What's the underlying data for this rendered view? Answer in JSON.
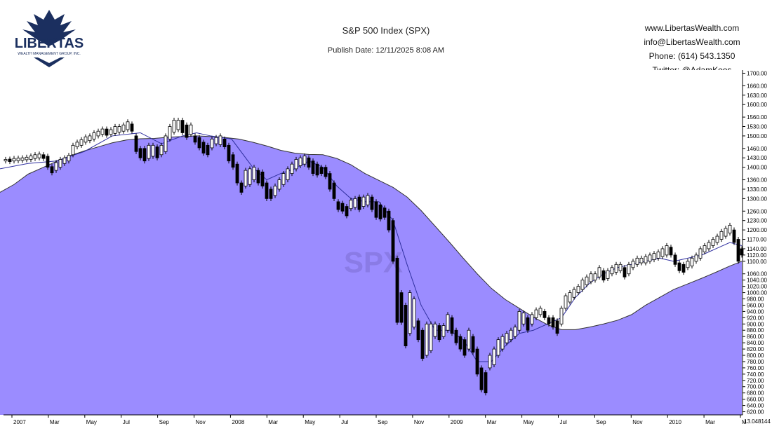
{
  "header": {
    "title": "S&P 500 Index (SPX)",
    "publish": "Publish Date: 12/11/2025 8:08 AM",
    "logo_text": "LIBERTAS",
    "logo_sub": "WEALTH MANAGEMENT GROUP, INC.",
    "contact": [
      "www.LibertasWealth.com",
      "info@LibertasWealth.com",
      "Phone:  (614) 543.1350",
      "Twitter:  @AdamKoos"
    ]
  },
  "chart_data": {
    "type": "candlestick",
    "symbol_watermark": "SPX",
    "ylim": [
      610,
      1710
    ],
    "y_ticks": [
      620,
      640,
      660,
      680,
      700,
      720,
      740,
      760,
      780,
      800,
      820,
      840,
      860,
      880,
      900,
      920,
      940,
      960,
      980,
      1000,
      1020,
      1040,
      1060,
      1100,
      1120,
      1140,
      1170,
      1200,
      1230,
      1260,
      1300,
      1330,
      1360,
      1400,
      1430,
      1460,
      1500,
      1530,
      1560,
      1600,
      1630,
      1660,
      1700
    ],
    "x_labels": [
      "2007",
      "Mar",
      "May",
      "Jul",
      "Sep",
      "Nov",
      "2008",
      "Mar",
      "May",
      "Jul",
      "Sep",
      "Nov",
      "2009",
      "Mar",
      "May",
      "Jul",
      "Sep",
      "Nov",
      "2010",
      "Mar",
      "M"
    ],
    "last_value": "13.048144",
    "colors": {
      "area": "#9b8cff",
      "ma": "#3030a0",
      "bg": "#ffffff",
      "axis": "#000000"
    },
    "long_ma": [
      [
        0,
        1320
      ],
      [
        20,
        1345
      ],
      [
        40,
        1378
      ],
      [
        60,
        1398
      ],
      [
        80,
        1418
      ],
      [
        100,
        1437
      ],
      [
        120,
        1452
      ],
      [
        140,
        1465
      ],
      [
        160,
        1478
      ],
      [
        180,
        1487
      ],
      [
        200,
        1491
      ],
      [
        220,
        1492
      ],
      [
        240,
        1496
      ],
      [
        260,
        1498
      ],
      [
        280,
        1500
      ],
      [
        300,
        1498
      ],
      [
        320,
        1495
      ],
      [
        340,
        1490
      ],
      [
        360,
        1480
      ],
      [
        380,
        1468
      ],
      [
        400,
        1454
      ],
      [
        420,
        1445
      ],
      [
        440,
        1441
      ],
      [
        460,
        1440
      ],
      [
        480,
        1428
      ],
      [
        500,
        1408
      ],
      [
        520,
        1380
      ],
      [
        540,
        1358
      ],
      [
        560,
        1336
      ],
      [
        580,
        1305
      ],
      [
        600,
        1262
      ],
      [
        620,
        1212
      ],
      [
        640,
        1162
      ],
      [
        660,
        1110
      ],
      [
        680,
        1060
      ],
      [
        700,
        1014
      ],
      [
        720,
        978
      ],
      [
        740,
        950
      ],
      [
        760,
        922
      ],
      [
        780,
        898
      ],
      [
        800,
        882
      ],
      [
        820,
        882
      ],
      [
        840,
        890
      ],
      [
        860,
        900
      ],
      [
        880,
        912
      ],
      [
        900,
        930
      ],
      [
        920,
        960
      ],
      [
        940,
        985
      ],
      [
        960,
        1010
      ],
      [
        980,
        1028
      ],
      [
        1000,
        1046
      ],
      [
        1020,
        1065
      ],
      [
        1040,
        1085
      ],
      [
        1057,
        1100
      ]
    ],
    "short_ma": [
      [
        0,
        1395
      ],
      [
        40,
        1412
      ],
      [
        80,
        1420
      ],
      [
        120,
        1450
      ],
      [
        160,
        1500
      ],
      [
        200,
        1510
      ],
      [
        230,
        1475
      ],
      [
        260,
        1500
      ],
      [
        280,
        1510
      ],
      [
        300,
        1500
      ],
      [
        330,
        1490
      ],
      [
        360,
        1400
      ],
      [
        380,
        1360
      ],
      [
        400,
        1380
      ],
      [
        420,
        1395
      ],
      [
        440,
        1420
      ],
      [
        460,
        1400
      ],
      [
        480,
        1340
      ],
      [
        500,
        1300
      ],
      [
        520,
        1290
      ],
      [
        540,
        1290
      ],
      [
        560,
        1230
      ],
      [
        580,
        1090
      ],
      [
        600,
        960
      ],
      [
        620,
        880
      ],
      [
        640,
        880
      ],
      [
        660,
        850
      ],
      [
        680,
        780
      ],
      [
        700,
        780
      ],
      [
        720,
        830
      ],
      [
        740,
        870
      ],
      [
        760,
        880
      ],
      [
        780,
        900
      ],
      [
        800,
        920
      ],
      [
        820,
        985
      ],
      [
        840,
        1030
      ],
      [
        860,
        1060
      ],
      [
        880,
        1080
      ],
      [
        900,
        1090
      ],
      [
        920,
        1100
      ],
      [
        940,
        1110
      ],
      [
        960,
        1100
      ],
      [
        980,
        1110
      ],
      [
        1000,
        1120
      ],
      [
        1020,
        1140
      ],
      [
        1040,
        1160
      ],
      [
        1057,
        1150
      ]
    ],
    "candles": [
      [
        8,
        1420,
        1425
      ],
      [
        14,
        1418,
        1426
      ],
      [
        20,
        1420,
        1428
      ],
      [
        26,
        1421,
        1429
      ],
      [
        32,
        1422,
        1430
      ],
      [
        38,
        1424,
        1432
      ],
      [
        44,
        1425,
        1436
      ],
      [
        50,
        1428,
        1440
      ],
      [
        56,
        1430,
        1442
      ],
      [
        62,
        1428,
        1440
      ],
      [
        68,
        1400,
        1435
      ],
      [
        74,
        1382,
        1402
      ],
      [
        80,
        1390,
        1415
      ],
      [
        86,
        1400,
        1425
      ],
      [
        92,
        1412,
        1430
      ],
      [
        98,
        1420,
        1438
      ],
      [
        104,
        1440,
        1470
      ],
      [
        110,
        1465,
        1480
      ],
      [
        116,
        1470,
        1488
      ],
      [
        122,
        1480,
        1497
      ],
      [
        128,
        1485,
        1500
      ],
      [
        134,
        1490,
        1510
      ],
      [
        140,
        1500,
        1515
      ],
      [
        146,
        1505,
        1522
      ],
      [
        152,
        1502,
        1522
      ],
      [
        158,
        1505,
        1520
      ],
      [
        164,
        1508,
        1530
      ],
      [
        170,
        1512,
        1530
      ],
      [
        176,
        1515,
        1535
      ],
      [
        182,
        1520,
        1545
      ],
      [
        188,
        1515,
        1538
      ],
      [
        194,
        1450,
        1500
      ],
      [
        200,
        1430,
        1460
      ],
      [
        206,
        1420,
        1460
      ],
      [
        212,
        1428,
        1470
      ],
      [
        218,
        1435,
        1470
      ],
      [
        224,
        1430,
        1465
      ],
      [
        230,
        1440,
        1470
      ],
      [
        236,
        1450,
        1500
      ],
      [
        242,
        1490,
        1530
      ],
      [
        248,
        1512,
        1550
      ],
      [
        254,
        1520,
        1550
      ],
      [
        260,
        1510,
        1550
      ],
      [
        266,
        1495,
        1535
      ],
      [
        272,
        1505,
        1535
      ],
      [
        278,
        1480,
        1500
      ],
      [
        284,
        1462,
        1495
      ],
      [
        290,
        1445,
        1480
      ],
      [
        296,
        1440,
        1470
      ],
      [
        302,
        1462,
        1490
      ],
      [
        308,
        1475,
        1495
      ],
      [
        314,
        1472,
        1500
      ],
      [
        320,
        1465,
        1490
      ],
      [
        326,
        1420,
        1470
      ],
      [
        332,
        1400,
        1440
      ],
      [
        338,
        1350,
        1410
      ],
      [
        344,
        1320,
        1350
      ],
      [
        350,
        1340,
        1390
      ],
      [
        356,
        1345,
        1395
      ],
      [
        362,
        1360,
        1400
      ],
      [
        368,
        1350,
        1390
      ],
      [
        374,
        1340,
        1385
      ],
      [
        380,
        1300,
        1350
      ],
      [
        386,
        1300,
        1330
      ],
      [
        392,
        1310,
        1340
      ],
      [
        398,
        1330,
        1360
      ],
      [
        404,
        1345,
        1380
      ],
      [
        410,
        1360,
        1395
      ],
      [
        416,
        1380,
        1410
      ],
      [
        422,
        1395,
        1425
      ],
      [
        428,
        1405,
        1430
      ],
      [
        434,
        1410,
        1436
      ],
      [
        440,
        1400,
        1430
      ],
      [
        446,
        1380,
        1420
      ],
      [
        452,
        1375,
        1410
      ],
      [
        458,
        1380,
        1400
      ],
      [
        464,
        1370,
        1400
      ],
      [
        470,
        1330,
        1380
      ],
      [
        476,
        1300,
        1350
      ],
      [
        482,
        1265,
        1290
      ],
      [
        488,
        1260,
        1285
      ],
      [
        494,
        1245,
        1275
      ],
      [
        500,
        1268,
        1295
      ],
      [
        506,
        1272,
        1300
      ],
      [
        512,
        1265,
        1305
      ],
      [
        518,
        1275,
        1305
      ],
      [
        524,
        1280,
        1310
      ],
      [
        530,
        1265,
        1305
      ],
      [
        536,
        1240,
        1290
      ],
      [
        542,
        1235,
        1280
      ],
      [
        548,
        1240,
        1270
      ],
      [
        554,
        1200,
        1260
      ],
      [
        560,
        1100,
        1230
      ],
      [
        566,
        905,
        1110
      ],
      [
        572,
        905,
        1000
      ],
      [
        578,
        830,
        960
      ],
      [
        584,
        870,
        1000
      ],
      [
        590,
        890,
        980
      ],
      [
        596,
        850,
        910
      ],
      [
        602,
        790,
        880
      ],
      [
        608,
        800,
        900
      ],
      [
        614,
        815,
        900
      ],
      [
        620,
        860,
        900
      ],
      [
        626,
        850,
        895
      ],
      [
        632,
        860,
        895
      ],
      [
        638,
        880,
        930
      ],
      [
        644,
        870,
        920
      ],
      [
        650,
        840,
        880
      ],
      [
        656,
        820,
        860
      ],
      [
        662,
        800,
        850
      ],
      [
        668,
        820,
        880
      ],
      [
        674,
        810,
        860
      ],
      [
        680,
        740,
        820
      ],
      [
        686,
        690,
        760
      ],
      [
        692,
        680,
        745
      ],
      [
        698,
        760,
        800
      ],
      [
        704,
        770,
        820
      ],
      [
        710,
        800,
        850
      ],
      [
        716,
        820,
        860
      ],
      [
        722,
        840,
        870
      ],
      [
        728,
        850,
        880
      ],
      [
        734,
        860,
        890
      ],
      [
        740,
        880,
        940
      ],
      [
        746,
        900,
        935
      ],
      [
        752,
        880,
        920
      ],
      [
        758,
        900,
        930
      ],
      [
        764,
        920,
        945
      ],
      [
        770,
        930,
        950
      ],
      [
        776,
        920,
        940
      ],
      [
        782,
        900,
        920
      ],
      [
        788,
        890,
        920
      ],
      [
        794,
        870,
        910
      ],
      [
        800,
        900,
        950
      ],
      [
        806,
        950,
        990
      ],
      [
        812,
        970,
        1000
      ],
      [
        818,
        985,
        1010
      ],
      [
        824,
        1000,
        1020
      ],
      [
        830,
        1010,
        1040
      ],
      [
        836,
        1025,
        1050
      ],
      [
        842,
        1035,
        1060
      ],
      [
        848,
        1040,
        1060
      ],
      [
        854,
        1050,
        1080
      ],
      [
        860,
        1040,
        1070
      ],
      [
        866,
        1045,
        1070
      ],
      [
        872,
        1060,
        1080
      ],
      [
        878,
        1065,
        1090
      ],
      [
        884,
        1070,
        1090
      ],
      [
        890,
        1050,
        1080
      ],
      [
        896,
        1060,
        1090
      ],
      [
        902,
        1080,
        1100
      ],
      [
        908,
        1090,
        1110
      ],
      [
        914,
        1095,
        1110
      ],
      [
        920,
        1095,
        1115
      ],
      [
        926,
        1100,
        1120
      ],
      [
        932,
        1105,
        1125
      ],
      [
        938,
        1110,
        1130
      ],
      [
        944,
        1115,
        1140
      ],
      [
        950,
        1120,
        1150
      ],
      [
        956,
        1120,
        1145
      ],
      [
        962,
        1090,
        1120
      ],
      [
        968,
        1070,
        1095
      ],
      [
        974,
        1065,
        1090
      ],
      [
        980,
        1080,
        1100
      ],
      [
        986,
        1085,
        1110
      ],
      [
        992,
        1100,
        1120
      ],
      [
        998,
        1110,
        1140
      ],
      [
        1004,
        1130,
        1150
      ],
      [
        1010,
        1140,
        1160
      ],
      [
        1016,
        1150,
        1170
      ],
      [
        1022,
        1160,
        1180
      ],
      [
        1028,
        1170,
        1195
      ],
      [
        1034,
        1180,
        1205
      ],
      [
        1040,
        1190,
        1215
      ],
      [
        1046,
        1160,
        1200
      ],
      [
        1052,
        1100,
        1170
      ],
      [
        1057,
        1120,
        1140
      ]
    ]
  }
}
